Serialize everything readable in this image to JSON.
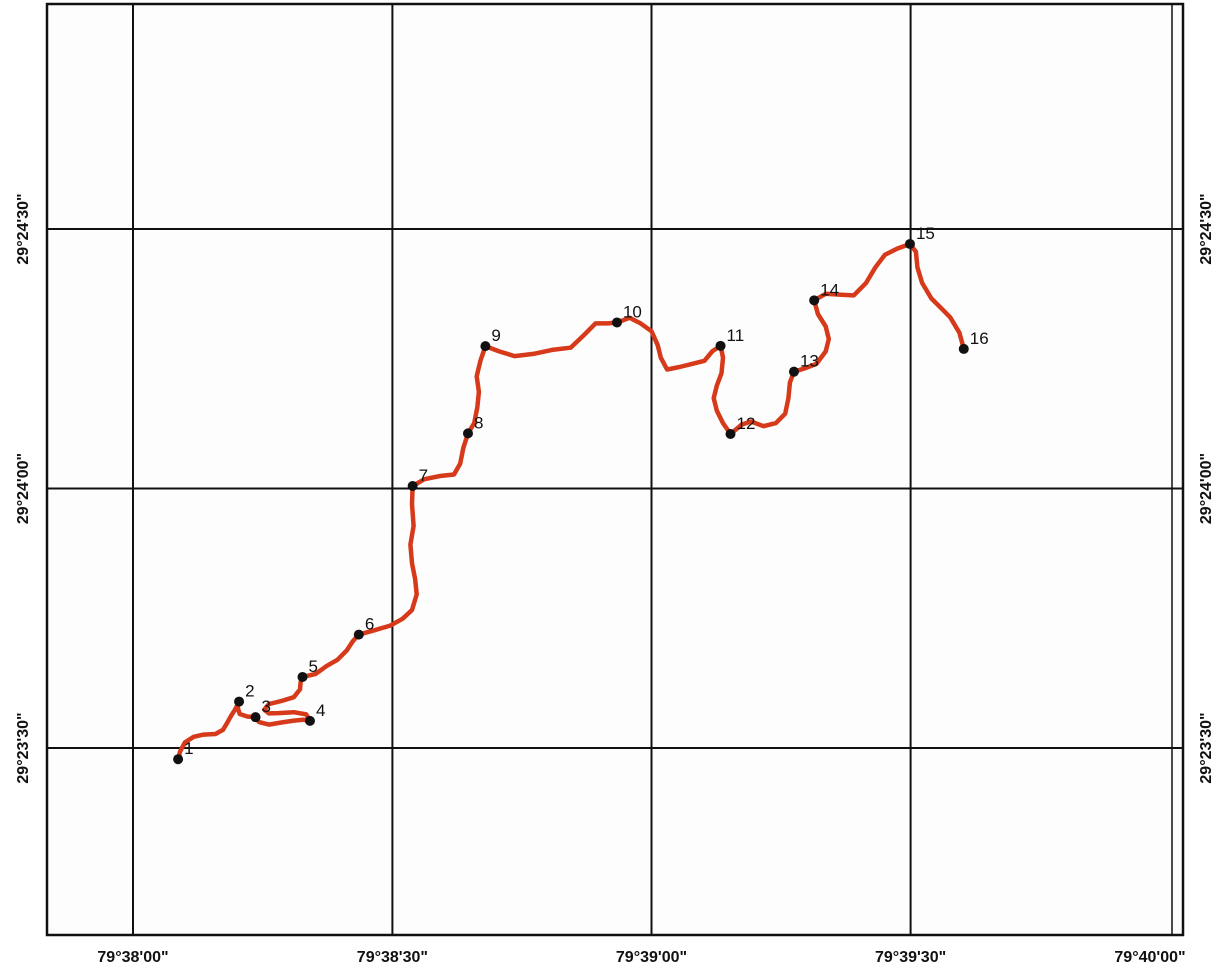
{
  "map": {
    "lon_ticks": [
      {
        "label": "79°38'00\"",
        "value": 79.63333
      },
      {
        "label": "79°38'30\"",
        "value": 79.64167
      },
      {
        "label": "79°39'00\"",
        "value": 79.65
      },
      {
        "label": "79°39'30\"",
        "value": 79.65833
      },
      {
        "label": "79°40'00\"",
        "value": 79.66667
      }
    ],
    "lat_ticks": [
      {
        "label": "29°24'30\"",
        "value": 29.40833
      },
      {
        "label": "29°24'00\"",
        "value": 29.4
      },
      {
        "label": "29°23'30\"",
        "value": 29.39167
      }
    ],
    "route_color": "#d63a1a",
    "waypoint_color": "#111111",
    "waypoints": [
      {
        "label": "1",
        "lon": 79.63478,
        "lat": 29.39131
      },
      {
        "label": "2",
        "lon": 79.63674,
        "lat": 29.39316
      },
      {
        "label": "3",
        "lon": 79.63727,
        "lat": 29.39266
      },
      {
        "label": "4",
        "lon": 79.63902,
        "lat": 29.39254
      },
      {
        "label": "5",
        "lon": 79.63878,
        "lat": 29.39395
      },
      {
        "label": "6",
        "lon": 79.64059,
        "lat": 29.39531
      },
      {
        "label": "7",
        "lon": 79.64232,
        "lat": 29.40008
      },
      {
        "label": "8",
        "lon": 79.6441,
        "lat": 29.40177
      },
      {
        "label": "9",
        "lon": 79.64466,
        "lat": 29.40457
      },
      {
        "label": "10",
        "lon": 79.64889,
        "lat": 29.40533
      },
      {
        "label": "11",
        "lon": 79.65222,
        "lat": 29.40458
      },
      {
        "label": "12",
        "lon": 79.65254,
        "lat": 29.40175
      },
      {
        "label": "13",
        "lon": 79.65458,
        "lat": 29.40375
      },
      {
        "label": "14",
        "lon": 79.65523,
        "lat": 29.40604
      },
      {
        "label": "15",
        "lon": 79.65831,
        "lat": 29.40785
      },
      {
        "label": "16",
        "lon": 79.66004,
        "lat": 29.40448
      }
    ],
    "route": [
      [
        79.63478,
        29.39131
      ],
      [
        79.63484,
        29.39155
      ],
      [
        79.635,
        29.39185
      ],
      [
        79.63528,
        29.39203
      ],
      [
        79.6356,
        29.3921
      ],
      [
        79.63598,
        29.39212
      ],
      [
        79.63622,
        29.39225
      ],
      [
        79.63636,
        29.39248
      ],
      [
        79.63648,
        29.3927
      ],
      [
        79.63661,
        29.3929
      ],
      [
        79.63674,
        29.39316
      ],
      [
        79.6367,
        29.39295
      ],
      [
        79.63676,
        29.39276
      ],
      [
        79.637,
        29.39268
      ],
      [
        79.63727,
        29.39266
      ],
      [
        79.63738,
        29.3925
      ],
      [
        79.6377,
        29.39242
      ],
      [
        79.6381,
        29.39249
      ],
      [
        79.6385,
        29.39255
      ],
      [
        79.6388,
        29.39258
      ],
      [
        79.63902,
        29.39254
      ],
      [
        79.6389,
        29.39275
      ],
      [
        79.6385,
        29.39282
      ],
      [
        79.638,
        29.39279
      ],
      [
        79.6377,
        29.39278
      ],
      [
        79.63755,
        29.3929
      ],
      [
        79.6377,
        29.39308
      ],
      [
        79.6381,
        29.39318
      ],
      [
        79.6385,
        29.3933
      ],
      [
        79.6387,
        29.39355
      ],
      [
        79.63872,
        29.39378
      ],
      [
        79.63878,
        29.39395
      ],
      [
        79.6392,
        29.39405
      ],
      [
        79.63955,
        29.3943
      ],
      [
        79.6399,
        29.3945
      ],
      [
        79.6402,
        29.3948
      ],
      [
        79.6404,
        29.3951
      ],
      [
        79.64059,
        29.39531
      ],
      [
        79.6411,
        29.39545
      ],
      [
        79.6416,
        29.3956
      ],
      [
        79.642,
        29.39582
      ],
      [
        79.6423,
        29.3961
      ],
      [
        79.64245,
        29.3966
      ],
      [
        79.6424,
        29.3971
      ],
      [
        79.6423,
        29.3976
      ],
      [
        79.64225,
        29.3982
      ],
      [
        79.64235,
        29.3988
      ],
      [
        79.6423,
        29.3995
      ],
      [
        79.64232,
        29.40008
      ],
      [
        79.6427,
        29.4003
      ],
      [
        79.6432,
        29.4004
      ],
      [
        79.64365,
        29.40045
      ],
      [
        79.64385,
        29.4008
      ],
      [
        79.64395,
        29.4013
      ],
      [
        79.6441,
        29.40177
      ],
      [
        79.6443,
        29.4021
      ],
      [
        79.6444,
        29.4026
      ],
      [
        79.64445,
        29.4031
      ],
      [
        79.64438,
        29.4036
      ],
      [
        79.6445,
        29.4041
      ],
      [
        79.64466,
        29.40457
      ],
      [
        79.6451,
        29.4044
      ],
      [
        79.6456,
        29.40425
      ],
      [
        79.6462,
        29.40432
      ],
      [
        79.6468,
        29.40445
      ],
      [
        79.6474,
        29.40452
      ],
      [
        79.6478,
        29.4049
      ],
      [
        79.6482,
        29.4053
      ],
      [
        79.6486,
        29.4053
      ],
      [
        79.64889,
        29.40533
      ],
      [
        79.6493,
        29.40548
      ],
      [
        79.64965,
        29.4053
      ],
      [
        79.65,
        29.40505
      ],
      [
        79.6502,
        29.4046
      ],
      [
        79.6503,
        29.4042
      ],
      [
        79.6505,
        29.40382
      ],
      [
        79.6509,
        29.4039
      ],
      [
        79.6513,
        29.404
      ],
      [
        79.6517,
        29.4041
      ],
      [
        79.65195,
        29.4044
      ],
      [
        79.65222,
        29.40458
      ],
      [
        79.6523,
        29.4042
      ],
      [
        79.65225,
        29.4037
      ],
      [
        79.6521,
        29.4033
      ],
      [
        79.652,
        29.4029
      ],
      [
        79.6521,
        29.4025
      ],
      [
        79.6523,
        29.4021
      ],
      [
        79.65254,
        29.40175
      ],
      [
        79.6529,
        29.40205
      ],
      [
        79.6532,
        29.40215
      ],
      [
        79.6536,
        29.402
      ],
      [
        79.654,
        29.4021
      ],
      [
        79.6543,
        29.4024
      ],
      [
        79.6544,
        29.4029
      ],
      [
        79.65445,
        29.4034
      ],
      [
        79.65458,
        29.40375
      ],
      [
        79.6549,
        29.40385
      ],
      [
        79.6553,
        29.404
      ],
      [
        79.6556,
        29.4044
      ],
      [
        79.6557,
        29.4048
      ],
      [
        79.6556,
        29.4052
      ],
      [
        79.65535,
        29.4056
      ],
      [
        79.65523,
        29.40604
      ],
      [
        79.6556,
        29.40625
      ],
      [
        79.6561,
        29.40622
      ],
      [
        79.6565,
        29.4062
      ],
      [
        79.6569,
        29.4066
      ],
      [
        79.6572,
        29.4071
      ],
      [
        79.6575,
        29.4075
      ],
      [
        79.6579,
        29.4077
      ],
      [
        79.65831,
        29.40785
      ],
      [
        79.6585,
        29.4076
      ],
      [
        79.65855,
        29.4071
      ],
      [
        79.6587,
        29.4066
      ],
      [
        79.659,
        29.4061
      ],
      [
        79.6593,
        29.4058
      ],
      [
        79.6596,
        29.4055
      ],
      [
        79.6599,
        29.405
      ],
      [
        79.66004,
        29.40448
      ]
    ]
  }
}
